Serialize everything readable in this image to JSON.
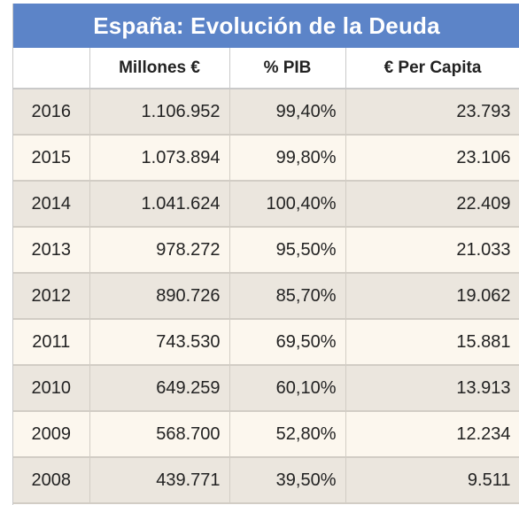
{
  "title": "España: Evolución de la Deuda",
  "columns": [
    "",
    "Millones €",
    "% PIB",
    "€ Per Capita"
  ],
  "chart_data": {
    "type": "table",
    "title": "España: Evolución de la Deuda",
    "columns": [
      "",
      "Millones €",
      "% PIB",
      "€ Per Capita"
    ],
    "rows": [
      {
        "year": "2016",
        "millones": "1.106.952",
        "pib": "99,40%",
        "per_capita": "23.793"
      },
      {
        "year": "2015",
        "millones": "1.073.894",
        "pib": "99,80%",
        "per_capita": "23.106"
      },
      {
        "year": "2014",
        "millones": "1.041.624",
        "pib": "100,40%",
        "per_capita": "22.409"
      },
      {
        "year": "2013",
        "millones": "978.272",
        "pib": "95,50%",
        "per_capita": "21.033"
      },
      {
        "year": "2012",
        "millones": "890.726",
        "pib": "85,70%",
        "per_capita": "19.062"
      },
      {
        "year": "2011",
        "millones": "743.530",
        "pib": "69,50%",
        "per_capita": "15.881"
      },
      {
        "year": "2010",
        "millones": "649.259",
        "pib": "60,10%",
        "per_capita": "13.913"
      },
      {
        "year": "2009",
        "millones": "568.700",
        "pib": "52,80%",
        "per_capita": "12.234"
      },
      {
        "year": "2008",
        "millones": "439.771",
        "pib": "39,50%",
        "per_capita": "9.511"
      }
    ]
  },
  "colors": {
    "title_bg": "#5c84c8",
    "row_odd": "#ebe6de",
    "row_even": "#fcf7ee"
  }
}
